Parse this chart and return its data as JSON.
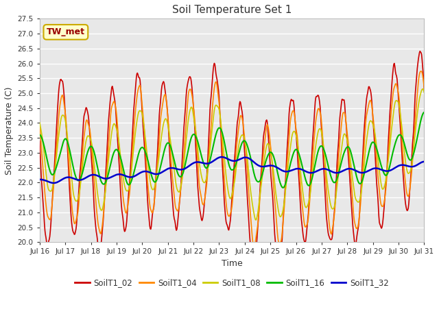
{
  "title": "Soil Temperature Set 1",
  "xlabel": "Time",
  "ylabel": "Soil Temperature (C)",
  "ylim": [
    20.0,
    27.5
  ],
  "yticks": [
    20.0,
    20.5,
    21.0,
    21.5,
    22.0,
    22.5,
    23.0,
    23.5,
    24.0,
    24.5,
    25.0,
    25.5,
    26.0,
    26.5,
    27.0,
    27.5
  ],
  "outer_bg_color": "#ffffff",
  "plot_bg_color": "#e8e8e8",
  "grid_color": "#ffffff",
  "annotation_text": "TW_met",
  "annotation_bg": "#ffffcc",
  "annotation_border": "#ccaa00",
  "annotation_text_color": "#990000",
  "series_colors": [
    "#cc0000",
    "#ff8800",
    "#cccc00",
    "#00bb00",
    "#0000cc"
  ],
  "series_lw": [
    1.2,
    1.2,
    1.2,
    1.5,
    1.8
  ],
  "legend_labels": [
    "SoilT1_02",
    "SoilT1_04",
    "SoilT1_08",
    "SoilT1_16",
    "SoilT1_32"
  ],
  "x_tick_labels": [
    "Jul 16",
    "Jul 17",
    "Jul 18",
    "Jul 19",
    "Jul 20",
    "Jul 21",
    "Jul 22",
    "Jul 23",
    "Jul 24",
    "Jul 25",
    "Jul 26",
    "Jul 27",
    "Jul 28",
    "Jul 29",
    "Jul 30",
    "Jul 31"
  ],
  "x_tick_positions": [
    0,
    24,
    48,
    72,
    96,
    120,
    144,
    168,
    192,
    216,
    240,
    264,
    288,
    312,
    336,
    360
  ],
  "n_points": 721
}
